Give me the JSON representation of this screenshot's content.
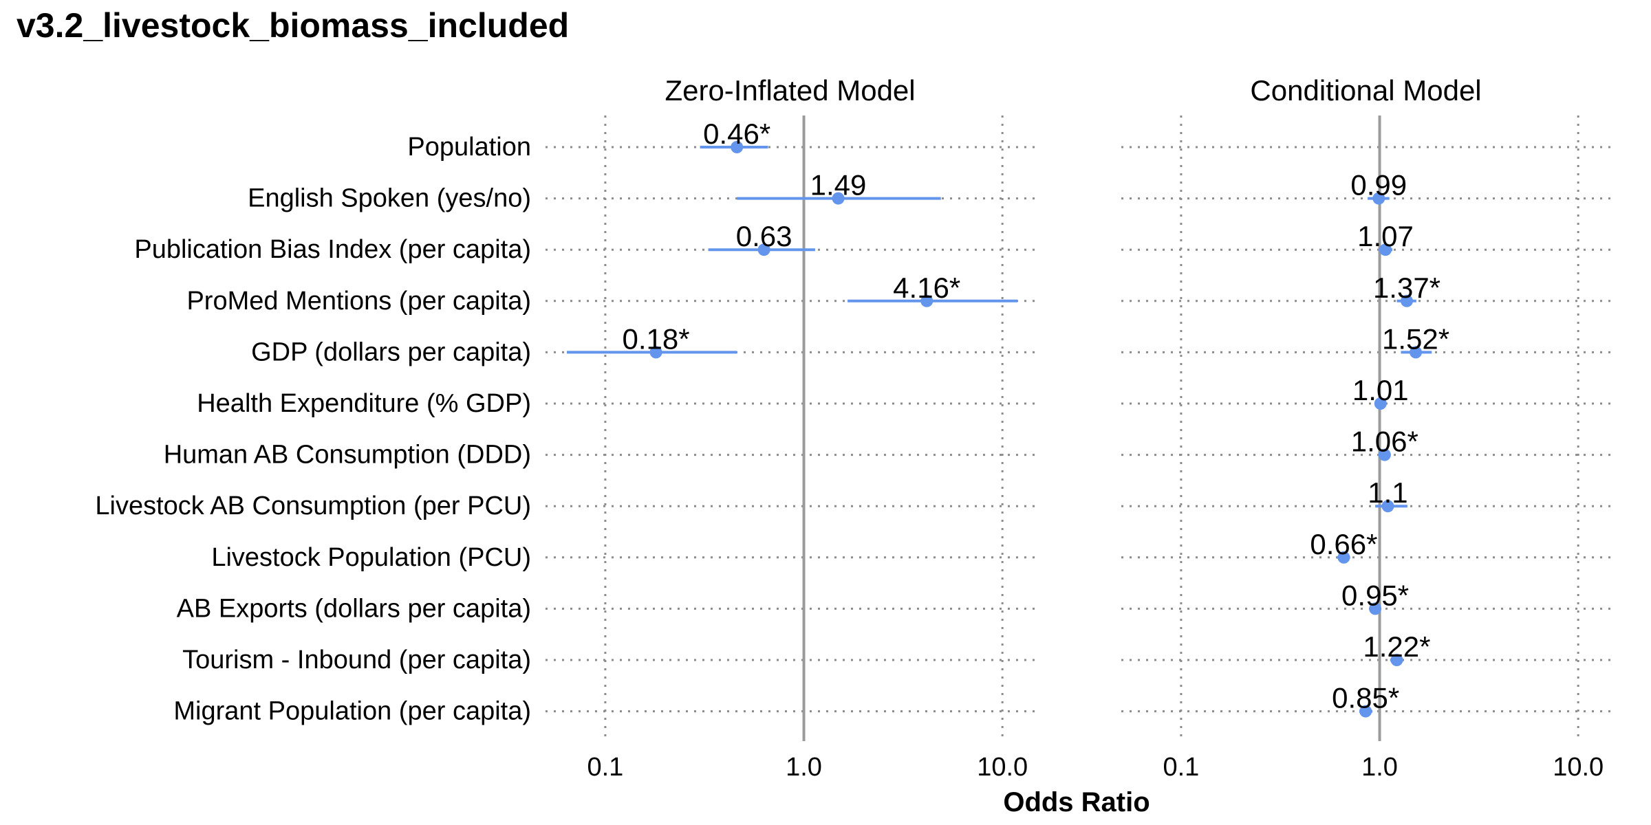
{
  "chart_data": {
    "type": "forest",
    "title": "v3.2_livestock_biomass_included",
    "xlabel": "Odds Ratio",
    "x_scale": "log10",
    "xlim": [
      0.05,
      15
    ],
    "x_ticks": [
      0.1,
      1.0,
      10.0
    ],
    "x_tick_labels": [
      "0.1",
      "1.0",
      "10.0"
    ],
    "reference_line": 1.0,
    "grid": "dotted",
    "marker_color": "#6495ED",
    "reference_color": "#9b9b9b",
    "grid_color": "#8c8c8c",
    "variables": [
      "Population",
      "English Spoken (yes/no)",
      "Publication Bias Index (per capita)",
      "ProMed Mentions (per capita)",
      "GDP (dollars per capita)",
      "Health Expenditure (% GDP)",
      "Human AB Consumption (DDD)",
      "Livestock AB Consumption (per PCU)",
      "Livestock Population (PCU)",
      "AB Exports (dollars per capita)",
      "Tourism - Inbound (per capita)",
      "Migrant Population (per capita)"
    ],
    "panels": [
      {
        "name": "Zero-Inflated Model",
        "estimates": [
          {
            "variable": "Population",
            "or": 0.46,
            "low": 0.3,
            "high": 0.66,
            "label": "0.46*"
          },
          {
            "variable": "English Spoken (yes/no)",
            "or": 1.49,
            "low": 0.46,
            "high": 4.9,
            "label": "1.49"
          },
          {
            "variable": "Publication Bias Index (per capita)",
            "or": 0.63,
            "low": 0.33,
            "high": 1.14,
            "label": "0.63"
          },
          {
            "variable": "ProMed Mentions (per capita)",
            "or": 4.16,
            "low": 1.66,
            "high": 11.9,
            "label": "4.16*"
          },
          {
            "variable": "GDP (dollars per capita)",
            "or": 0.18,
            "low": 0.064,
            "high": 0.46,
            "label": "0.18*"
          }
        ]
      },
      {
        "name": "Conditional Model",
        "estimates": [
          {
            "variable": "English Spoken (yes/no)",
            "or": 0.99,
            "low": 0.87,
            "high": 1.12,
            "label": "0.99"
          },
          {
            "variable": "Publication Bias Index (per capita)",
            "or": 1.07,
            "low": 0.99,
            "high": 1.16,
            "label": "1.07"
          },
          {
            "variable": "ProMed Mentions (per capita)",
            "or": 1.37,
            "low": 1.22,
            "high": 1.53,
            "label": "1.37*"
          },
          {
            "variable": "GDP (dollars per capita)",
            "or": 1.52,
            "low": 1.28,
            "high": 1.83,
            "label": "1.52*"
          },
          {
            "variable": "Health Expenditure (% GDP)",
            "or": 1.01,
            "low": 0.96,
            "high": 1.06,
            "label": "1.01"
          },
          {
            "variable": "Human AB Consumption (DDD)",
            "or": 1.06,
            "low": 1.02,
            "high": 1.11,
            "label": "1.06*"
          },
          {
            "variable": "Livestock AB Consumption (per PCU)",
            "or": 1.1,
            "low": 0.95,
            "high": 1.38,
            "label": "1.1"
          },
          {
            "variable": "Livestock Population (PCU)",
            "or": 0.66,
            "low": 0.61,
            "high": 0.71,
            "label": "0.66*"
          },
          {
            "variable": "AB Exports (dollars per capita)",
            "or": 0.95,
            "low": 0.91,
            "high": 0.99,
            "label": "0.95*"
          },
          {
            "variable": "Tourism - Inbound (per capita)",
            "or": 1.22,
            "low": 1.13,
            "high": 1.32,
            "label": "1.22*"
          },
          {
            "variable": "Migrant Population (per capita)",
            "or": 0.85,
            "low": 0.79,
            "high": 0.92,
            "label": "0.85*"
          }
        ]
      }
    ]
  }
}
